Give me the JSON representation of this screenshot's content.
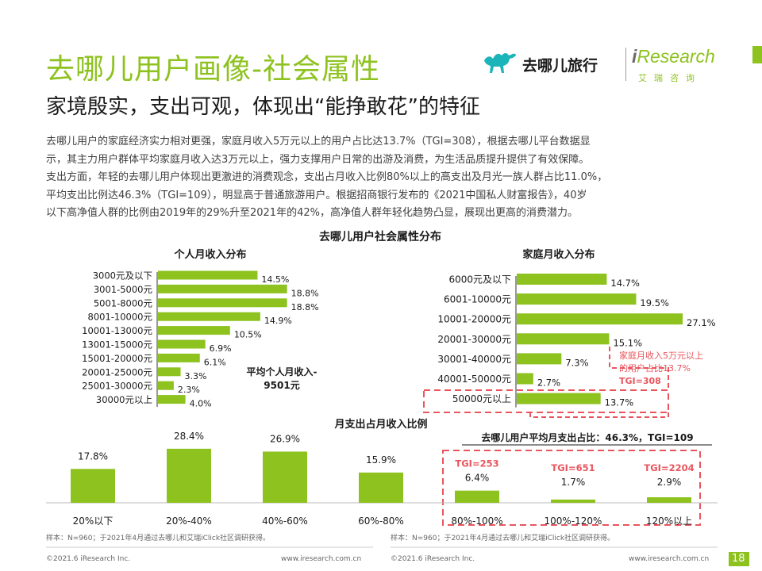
{
  "header": {
    "title": "去哪儿用户画像-社会属性",
    "subtitle": "家境殷实，支出可观，体现出“能挣敢花”的特征",
    "qunar_logo_text": "去哪儿旅行",
    "iresearch_logo_text": "Research",
    "iresearch_logo_i": "i",
    "iresearch_logo_cn": "艾瑞咨询"
  },
  "paragraph": [
    "去哪儿用户的家庭经济实力相对更强，家庭月收入5万元以上的用户占比达13.7%（TGI=308），根据去哪儿平台数据显",
    "示，其主力用户群体平均家庭月收入达3万元以上，强力支撑用户日常的出游及消费，为生活品质提升提供了有效保障。",
    "支出方面，年轻的去哪儿用户体现出更激进的消费观念，支出占月收入比例80%以上的高支出及月光一族人群占比11.0%，",
    "平均支出比例达46.3%（TGI=109），明显高于普通旅游用户。根据招商银行发布的《2021中国私人财富报告》，40岁",
    "以下高净值人群的比例由2019年的29%升至2021年的42%，高净值人群年轻化趋势凸显，展现出更高的消费潜力。"
  ],
  "section_title": "去哪儿用户社会属性分布",
  "colors": {
    "accent": "#8dc21f",
    "highlight": "#e8555d",
    "axis": "#333333"
  },
  "chart_data": [
    {
      "type": "bar",
      "orientation": "horizontal",
      "title": "个人月收入分布",
      "categories": [
        "3000元及以下",
        "3001-5000元",
        "5001-8000元",
        "8001-10000元",
        "10001-13000元",
        "13001-15000元",
        "15001-20000元",
        "20001-25000元",
        "25001-30000元",
        "30000元以上"
      ],
      "values": [
        14.5,
        18.8,
        18.8,
        14.9,
        10.5,
        6.9,
        6.1,
        3.3,
        2.3,
        4.0
      ],
      "labels": [
        "14.5%",
        "18.8%",
        "18.8%",
        "14.9%",
        "10.5%",
        "6.9%",
        "6.1%",
        "3.3%",
        "2.3%",
        "4.0%"
      ],
      "xlim": [
        0,
        20
      ],
      "annotation_lines": [
        "平均个人月收入-",
        "9501元"
      ]
    },
    {
      "type": "bar",
      "orientation": "horizontal",
      "title": "家庭月收入分布",
      "categories": [
        "6000元及以下",
        "6001-10000元",
        "10001-20000元",
        "20001-30000元",
        "30001-40000元",
        "40001-50000元",
        "50000元以上"
      ],
      "values": [
        14.7,
        19.5,
        27.1,
        15.1,
        7.3,
        2.7,
        13.7
      ],
      "labels": [
        "14.7%",
        "19.5%",
        "27.1%",
        "15.1%",
        "7.3%",
        "2.7%",
        "13.7%"
      ],
      "xlim": [
        0,
        28
      ],
      "callout_lines": [
        "家庭月收入5万元以上",
        "的用户占比13.7%"
      ],
      "callout_tgi": "TGI=308"
    },
    {
      "type": "bar",
      "orientation": "vertical",
      "title": "月支出占月收入比例",
      "categories": [
        "20%以下",
        "20%-40%",
        "40%-60%",
        "60%-80%",
        "80%-100%",
        "100%-120%",
        "120%以上"
      ],
      "values": [
        17.8,
        28.4,
        26.9,
        15.9,
        6.4,
        1.7,
        2.9
      ],
      "labels": [
        "17.8%",
        "28.4%",
        "26.9%",
        "15.9%",
        "6.4%",
        "1.7%",
        "2.9%"
      ],
      "ylim": [
        0,
        30
      ],
      "summary": "去哪儿用户平均月支出占比：46.3%，TGI=109",
      "tgi_labels": [
        "",
        "",
        "",
        "",
        "TGI=253",
        "TGI=651",
        "TGI=2204"
      ]
    }
  ],
  "footer": {
    "note_left": "样本：N=960；于2021年4月通过去哪儿和艾瑞iClick社区调研获得。",
    "note_right": "样本：N=960；于2021年4月通过去哪儿和艾瑞iClick社区调研获得。",
    "copyright_left": "©2021.6 iResearch Inc.",
    "url_left": "www.iresearch.com.cn",
    "copyright_right": "©2021.6 iResearch Inc.",
    "url_right": "www.iresearch.com.cn",
    "page": "18"
  }
}
